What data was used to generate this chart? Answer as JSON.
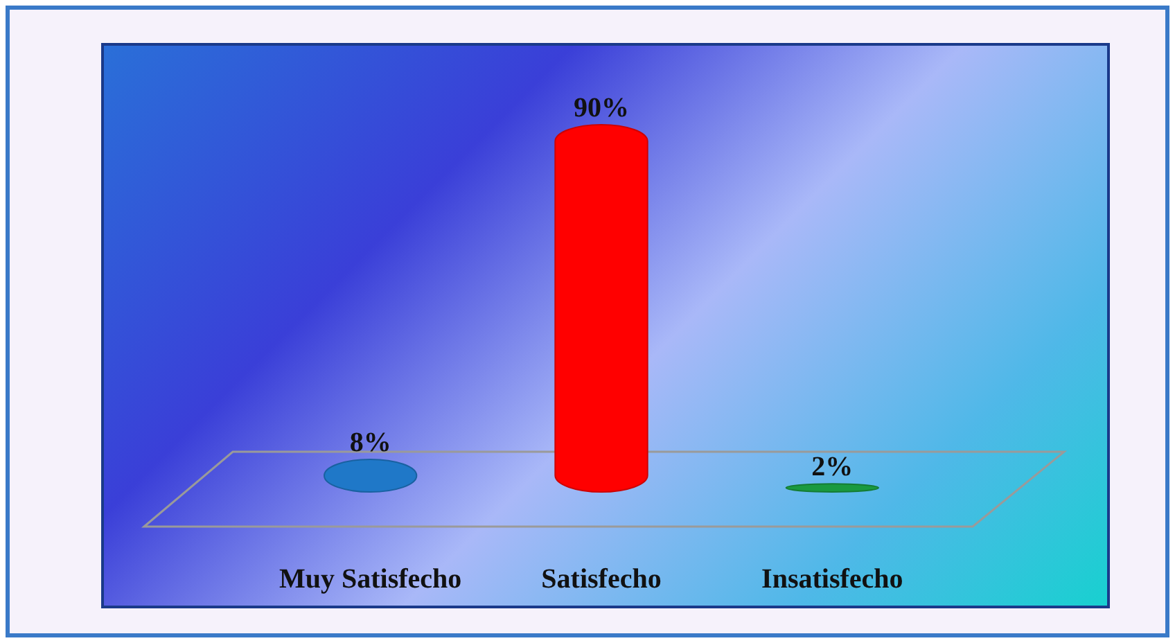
{
  "chart_data": {
    "type": "bar",
    "categories": [
      "Muy Satisfecho",
      "Satisfecho",
      "Insatisfecho"
    ],
    "values": [
      8,
      90,
      2
    ],
    "value_labels": [
      "8%",
      "90%",
      "2%"
    ],
    "colors": [
      "#1f78c8",
      "#ff0000",
      "#1a9a40"
    ]
  }
}
